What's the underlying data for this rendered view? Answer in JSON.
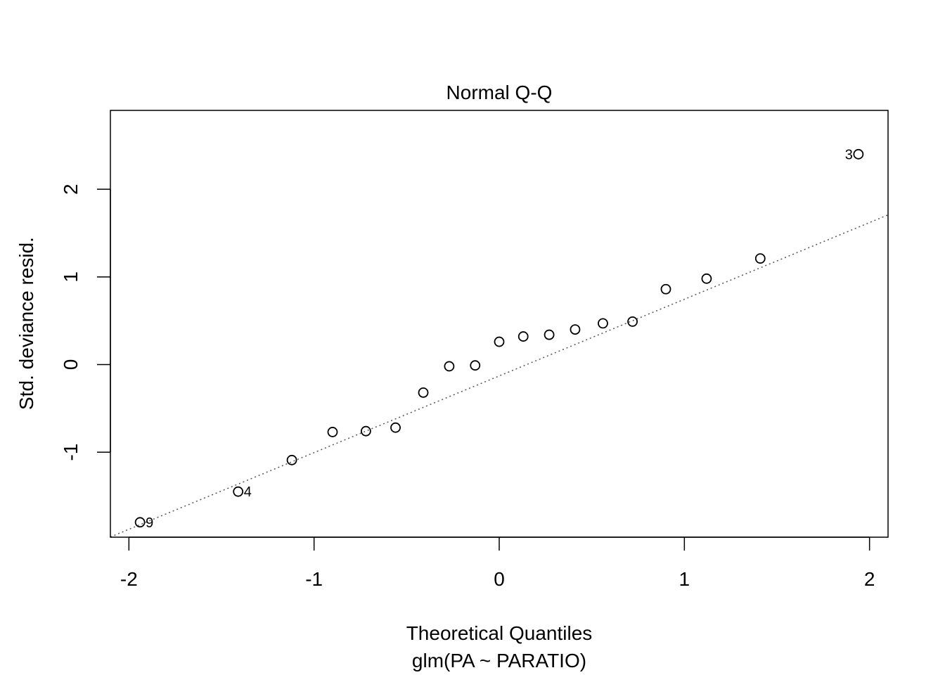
{
  "chart_data": {
    "type": "scatter",
    "title": "Normal Q-Q",
    "xlabel": "Theoretical Quantiles",
    "subtitle": "glm(PA ~ PARATIO)",
    "ylabel": "Std. deviance resid.",
    "xlim": [
      -2.1,
      2.1
    ],
    "ylim": [
      -1.97,
      2.9
    ],
    "x_ticks": [
      -2,
      -1,
      0,
      1,
      2
    ],
    "x_tick_labels": [
      "-2",
      "-1",
      "0",
      "1",
      "2"
    ],
    "y_ticks": [
      -1,
      0,
      1,
      2
    ],
    "y_tick_labels": [
      "-1",
      "0",
      "1",
      "2"
    ],
    "grid": false,
    "legend": "none",
    "points": [
      {
        "x": -1.94,
        "y": -1.8,
        "label": "9"
      },
      {
        "x": -1.41,
        "y": -1.45,
        "label": "4"
      },
      {
        "x": -1.12,
        "y": -1.09,
        "label": ""
      },
      {
        "x": -0.9,
        "y": -0.77,
        "label": ""
      },
      {
        "x": -0.72,
        "y": -0.76,
        "label": ""
      },
      {
        "x": -0.56,
        "y": -0.72,
        "label": ""
      },
      {
        "x": -0.41,
        "y": -0.32,
        "label": ""
      },
      {
        "x": -0.27,
        "y": -0.02,
        "label": ""
      },
      {
        "x": -0.13,
        "y": -0.01,
        "label": ""
      },
      {
        "x": 0.0,
        "y": 0.26,
        "label": ""
      },
      {
        "x": 0.13,
        "y": 0.32,
        "label": ""
      },
      {
        "x": 0.27,
        "y": 0.34,
        "label": ""
      },
      {
        "x": 0.41,
        "y": 0.4,
        "label": ""
      },
      {
        "x": 0.56,
        "y": 0.47,
        "label": ""
      },
      {
        "x": 0.72,
        "y": 0.49,
        "label": ""
      },
      {
        "x": 0.9,
        "y": 0.86,
        "label": ""
      },
      {
        "x": 1.12,
        "y": 0.98,
        "label": ""
      },
      {
        "x": 1.41,
        "y": 1.21,
        "label": ""
      },
      {
        "x": 1.94,
        "y": 2.4,
        "label": "3"
      }
    ],
    "reference_line": {
      "intercept": -0.13,
      "slope": 0.875,
      "style": "dotted",
      "color": "#555555"
    },
    "point_color": "#000000"
  }
}
